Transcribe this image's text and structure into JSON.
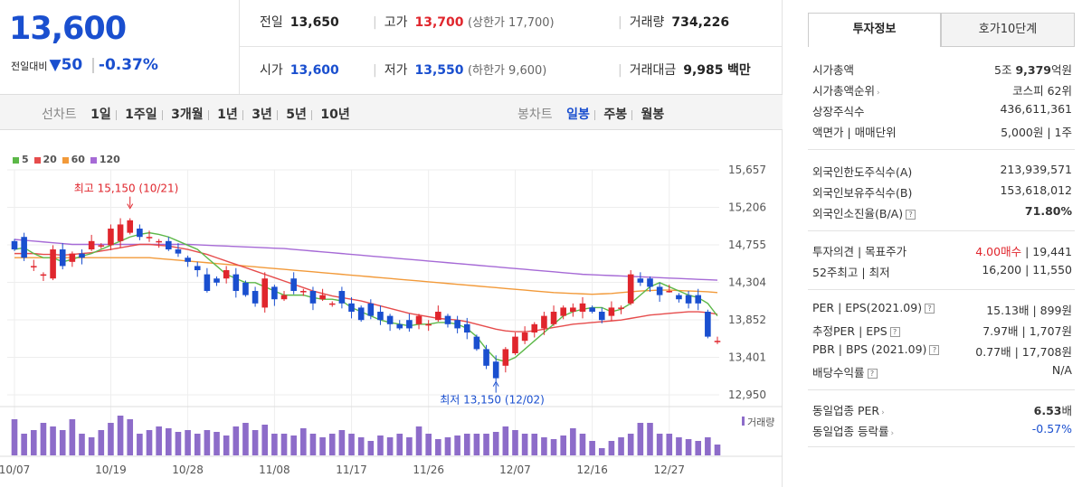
{
  "price": {
    "current": "13,600",
    "change_label": "전일대비",
    "change_arrow": "▼",
    "change": "50",
    "change_pct": "-0.37%"
  },
  "stats": {
    "prev_label": "전일",
    "prev": "13,650",
    "high_label": "고가",
    "high": "13,700",
    "upper_limit_text": "(상한가 17,700)",
    "volume_label": "거래량",
    "volume": "734,226",
    "open_label": "시가",
    "open": "13,600",
    "low_label": "저가",
    "low": "13,550",
    "lower_limit_text": "(하한가 9,600)",
    "amount_label": "거래대금",
    "amount": "9,985",
    "amount_unit": "백만"
  },
  "toolbar": {
    "line_chart": "선차트",
    "ranges": [
      "1일",
      "1주일",
      "3개월",
      "1년",
      "3년",
      "5년",
      "10년"
    ],
    "candle_chart": "봉차트",
    "candle_periods": [
      "일봉",
      "주봉",
      "월봉"
    ]
  },
  "colors": {
    "up": "#e0262d",
    "down": "#1a4fcf",
    "ma5": "#5cb848",
    "ma20": "#e64c4c",
    "ma60": "#f29a3a",
    "ma120": "#a66ad6",
    "volume": "#8d6cc9"
  },
  "chart_data": {
    "type": "candlestick",
    "legend": [
      {
        "name": "5"
      },
      {
        "name": "20"
      },
      {
        "name": "60"
      },
      {
        "name": "120"
      }
    ],
    "y_ticks": [
      "15,657",
      "15,206",
      "14,755",
      "14,304",
      "13,852",
      "13,401",
      "12,950"
    ],
    "ylim": [
      12950,
      15657
    ],
    "x_ticks": [
      "10/07",
      "10/19",
      "10/28",
      "11/08",
      "11/17",
      "11/26",
      "12/07",
      "12/16",
      "12/27"
    ],
    "annotations": {
      "high": "최고 15,150 (10/21)",
      "low": "최저 13,150 (12/02)"
    },
    "volume_label": "거래량",
    "candles": [
      {
        "o": 14800,
        "c": 14700
      },
      {
        "o": 14850,
        "c": 14600
      },
      {
        "o": 14500,
        "c": 14500
      },
      {
        "o": 14400,
        "c": 14400
      },
      {
        "o": 14350,
        "c": 14700
      },
      {
        "o": 14700,
        "c": 14500
      },
      {
        "o": 14550,
        "c": 14650
      },
      {
        "o": 14650,
        "c": 14600
      },
      {
        "o": 14700,
        "c": 14800
      },
      {
        "o": 14750,
        "c": 14750
      },
      {
        "o": 14750,
        "c": 14950
      },
      {
        "o": 14800,
        "c": 15000
      },
      {
        "o": 14900,
        "c": 15050
      },
      {
        "o": 14950,
        "c": 14850
      },
      {
        "o": 14850,
        "c": 14850
      },
      {
        "o": 14800,
        "c": 14800
      },
      {
        "o": 14800,
        "c": 14700
      },
      {
        "o": 14700,
        "c": 14650
      },
      {
        "o": 14600,
        "c": 14550
      },
      {
        "o": 14500,
        "c": 14450
      },
      {
        "o": 14400,
        "c": 14200
      },
      {
        "o": 14350,
        "c": 14300
      },
      {
        "o": 14350,
        "c": 14450
      },
      {
        "o": 14400,
        "c": 14200
      },
      {
        "o": 14300,
        "c": 14150
      },
      {
        "o": 14200,
        "c": 14050
      },
      {
        "o": 14000,
        "c": 14350
      },
      {
        "o": 14250,
        "c": 14100
      },
      {
        "o": 14100,
        "c": 14150
      },
      {
        "o": 14350,
        "c": 14200
      },
      {
        "o": 14200,
        "c": 14200
      },
      {
        "o": 14200,
        "c": 14050
      },
      {
        "o": 14100,
        "c": 14150
      },
      {
        "o": 14050,
        "c": 14050
      },
      {
        "o": 14200,
        "c": 14050
      },
      {
        "o": 14050,
        "c": 13950
      },
      {
        "o": 14000,
        "c": 13850
      },
      {
        "o": 14050,
        "c": 13900
      },
      {
        "o": 13950,
        "c": 13850
      },
      {
        "o": 13900,
        "c": 13800
      },
      {
        "o": 13800,
        "c": 13750
      },
      {
        "o": 13850,
        "c": 13750
      },
      {
        "o": 13800,
        "c": 13900
      },
      {
        "o": 13800,
        "c": 13800
      },
      {
        "o": 13850,
        "c": 13950
      },
      {
        "o": 13900,
        "c": 13800
      },
      {
        "o": 13850,
        "c": 13750
      },
      {
        "o": 13800,
        "c": 13700
      },
      {
        "o": 13650,
        "c": 13500
      },
      {
        "o": 13500,
        "c": 13300
      },
      {
        "o": 13350,
        "c": 13150
      },
      {
        "o": 13300,
        "c": 13500
      },
      {
        "o": 13450,
        "c": 13650
      },
      {
        "o": 13600,
        "c": 13700
      },
      {
        "o": 13700,
        "c": 13800
      },
      {
        "o": 13750,
        "c": 13900
      },
      {
        "o": 13800,
        "c": 13950
      },
      {
        "o": 13900,
        "c": 14000
      },
      {
        "o": 13950,
        "c": 14000
      },
      {
        "o": 13950,
        "c": 14050
      },
      {
        "o": 14000,
        "c": 13950
      },
      {
        "o": 13950,
        "c": 13850
      },
      {
        "o": 13900,
        "c": 14000
      },
      {
        "o": 14000,
        "c": 14000
      },
      {
        "o": 14050,
        "c": 14400
      },
      {
        "o": 14350,
        "c": 14300
      },
      {
        "o": 14350,
        "c": 14250
      },
      {
        "o": 14250,
        "c": 14150
      },
      {
        "o": 14200,
        "c": 14200
      },
      {
        "o": 14150,
        "c": 14100
      },
      {
        "o": 14150,
        "c": 14050
      },
      {
        "o": 14150,
        "c": 14050
      },
      {
        "o": 13950,
        "c": 13650
      },
      {
        "o": 13600,
        "c": 13600
      }
    ],
    "ma5": [
      14700,
      14720,
      14650,
      14600,
      14600,
      14550,
      14580,
      14620,
      14650,
      14700,
      14750,
      14800,
      14850,
      14880,
      14900,
      14880,
      14850,
      14800,
      14750,
      14700,
      14600,
      14500,
      14400,
      14350,
      14300,
      14300,
      14250,
      14200,
      14150,
      14150,
      14150,
      14120,
      14100,
      14100,
      14080,
      14000,
      13950,
      13900,
      13850,
      13820,
      13800,
      13780,
      13800,
      13800,
      13820,
      13820,
      13800,
      13750,
      13650,
      13500,
      13380,
      13350,
      13400,
      13500,
      13600,
      13700,
      13800,
      13900,
      13950,
      13980,
      14000,
      14000,
      13950,
      13980,
      14050,
      14150,
      14250,
      14300,
      14250,
      14200,
      14150,
      14120,
      14050,
      13900
    ],
    "ma20": [
      14650,
      14650,
      14650,
      14640,
      14640,
      14630,
      14640,
      14650,
      14660,
      14680,
      14700,
      14720,
      14740,
      14760,
      14760,
      14750,
      14740,
      14720,
      14700,
      14670,
      14640,
      14600,
      14560,
      14520,
      14480,
      14440,
      14400,
      14360,
      14320,
      14280,
      14240,
      14200,
      14170,
      14140,
      14120,
      14100,
      14080,
      14050,
      14020,
      13990,
      13960,
      13930,
      13910,
      13890,
      13870,
      13860,
      13850,
      13830,
      13800,
      13770,
      13740,
      13720,
      13710,
      13710,
      13720,
      13740,
      13760,
      13780,
      13800,
      13810,
      13820,
      13830,
      13840,
      13850,
      13870,
      13890,
      13910,
      13920,
      13930,
      13940,
      13950,
      13950,
      13940,
      13920
    ],
    "ma60": [
      14600,
      14600,
      14600,
      14600,
      14600,
      14600,
      14600,
      14600,
      14600,
      14600,
      14600,
      14600,
      14600,
      14600,
      14600,
      14590,
      14580,
      14570,
      14560,
      14550,
      14540,
      14530,
      14520,
      14510,
      14500,
      14490,
      14480,
      14470,
      14460,
      14450,
      14440,
      14430,
      14420,
      14410,
      14400,
      14390,
      14380,
      14370,
      14360,
      14350,
      14340,
      14330,
      14320,
      14310,
      14300,
      14290,
      14280,
      14270,
      14260,
      14250,
      14240,
      14230,
      14220,
      14210,
      14200,
      14190,
      14180,
      14175,
      14170,
      14165,
      14160,
      14165,
      14170,
      14180,
      14190,
      14200,
      14205,
      14210,
      14210,
      14205,
      14200,
      14195,
      14190,
      14180
    ],
    "ma120": [
      14820,
      14810,
      14800,
      14790,
      14780,
      14770,
      14760,
      14760,
      14760,
      14760,
      14760,
      14760,
      14760,
      14760,
      14760,
      14760,
      14760,
      14760,
      14760,
      14755,
      14750,
      14745,
      14740,
      14735,
      14730,
      14725,
      14720,
      14715,
      14710,
      14700,
      14690,
      14680,
      14670,
      14660,
      14650,
      14640,
      14630,
      14620,
      14610,
      14600,
      14590,
      14580,
      14570,
      14560,
      14550,
      14540,
      14530,
      14520,
      14510,
      14500,
      14490,
      14480,
      14470,
      14460,
      14450,
      14440,
      14430,
      14420,
      14410,
      14400,
      14395,
      14390,
      14385,
      14380,
      14375,
      14370,
      14365,
      14360,
      14355,
      14350,
      14345,
      14340,
      14335,
      14330
    ],
    "volumes": [
      100,
      60,
      70,
      90,
      80,
      70,
      100,
      60,
      50,
      70,
      90,
      110,
      100,
      60,
      70,
      80,
      75,
      65,
      70,
      60,
      70,
      65,
      55,
      80,
      90,
      70,
      85,
      60,
      60,
      55,
      75,
      60,
      50,
      60,
      70,
      60,
      50,
      40,
      55,
      50,
      60,
      50,
      80,
      60,
      45,
      50,
      55,
      60,
      60,
      60,
      65,
      80,
      70,
      60,
      60,
      50,
      45,
      55,
      75,
      60,
      40,
      20,
      40,
      50,
      60,
      90,
      90,
      60,
      60,
      50,
      45,
      40,
      50,
      30
    ]
  },
  "invest": {
    "tabs": [
      "투자정보",
      "호가10단계"
    ],
    "rows1": [
      {
        "k": "시가총액",
        "v_pre": "5조 ",
        "v_bold": "9,379",
        "v_suf": "억원"
      },
      {
        "k": "시가총액순위",
        "v": "코스피 62위"
      },
      {
        "k": "상장주식수",
        "v": "436,611,361"
      },
      {
        "k": "액면가 | 매매단위",
        "v": "5,000원 | 1주"
      }
    ],
    "rows2": [
      {
        "k": "외국인한도주식수(A)",
        "v": "213,939,571"
      },
      {
        "k": "외국인보유주식수(B)",
        "v": "153,618,012"
      },
      {
        "k": "외국인소진율(B/A)",
        "v": "71.80%"
      }
    ],
    "rows3": [
      {
        "k": "투자의견 | 목표주가",
        "v_red": "4.00매수",
        "v": " | 19,441"
      },
      {
        "k": "52주최고 | 최저",
        "v": "16,200 | 11,550"
      }
    ],
    "rows4": [
      {
        "k": "PER | EPS(2021.09)",
        "v": "15.13배 | 899원"
      },
      {
        "k": "추정PER | EPS",
        "v": "7.97배 | 1,707원"
      },
      {
        "k": "PBR | BPS (2021.09)",
        "v": "0.77배 | 17,708원"
      },
      {
        "k": "배당수익률",
        "v": "N/A"
      }
    ],
    "rows5": [
      {
        "k": "동일업종 PER",
        "v_bold": "6.53",
        "v_suf": "배"
      },
      {
        "k": "동일업종 등락률",
        "v": "-0.57%"
      }
    ]
  }
}
